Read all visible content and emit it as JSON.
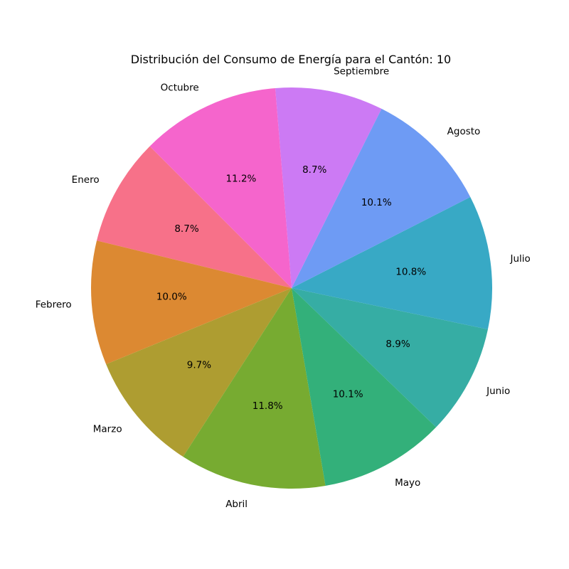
{
  "chart_data": {
    "type": "pie",
    "title": "Distribución del Consumo de Energía para el Cantón: 10",
    "start_angle_deg": 135,
    "direction": "counterclockwise",
    "slices": [
      {
        "label": "Enero",
        "value": 8.7,
        "pct_label": "8.7%",
        "color": "#f77189"
      },
      {
        "label": "Febrero",
        "value": 10.0,
        "pct_label": "10.0%",
        "color": "#dc8932"
      },
      {
        "label": "Marzo",
        "value": 9.7,
        "pct_label": "9.7%",
        "color": "#ae9d31"
      },
      {
        "label": "Abril",
        "value": 11.8,
        "pct_label": "11.8%",
        "color": "#77ab31"
      },
      {
        "label": "Mayo",
        "value": 10.1,
        "pct_label": "10.1%",
        "color": "#33b07a"
      },
      {
        "label": "Junio",
        "value": 8.9,
        "pct_label": "8.9%",
        "color": "#36ada4"
      },
      {
        "label": "Julio",
        "value": 10.8,
        "pct_label": "10.8%",
        "color": "#38a9c5"
      },
      {
        "label": "Agosto",
        "value": 10.1,
        "pct_label": "10.1%",
        "color": "#6e9bf4"
      },
      {
        "label": "Septiembre",
        "value": 8.7,
        "pct_label": "8.7%",
        "color": "#cc7af4"
      },
      {
        "label": "Octubre",
        "value": 11.2,
        "pct_label": "11.2%",
        "color": "#f565cc"
      }
    ]
  }
}
